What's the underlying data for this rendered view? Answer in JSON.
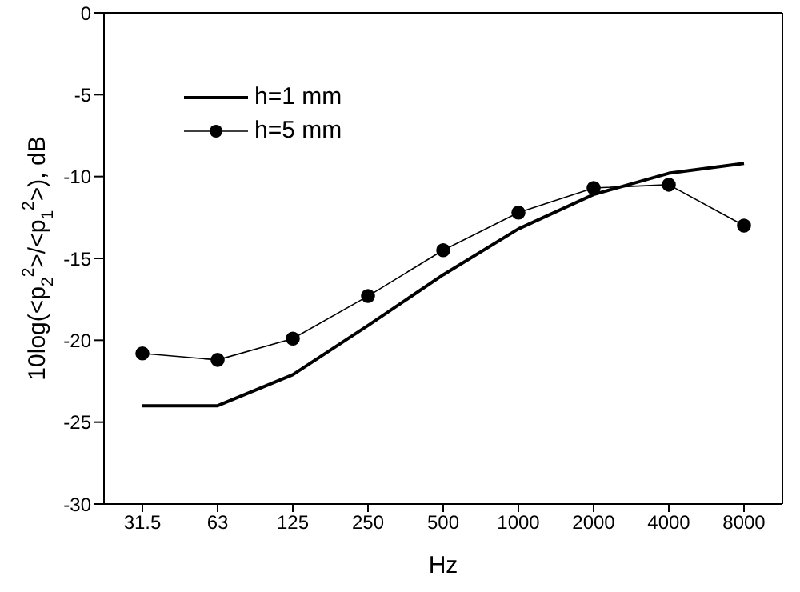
{
  "chart_data": {
    "type": "line",
    "xlabel": "Hz",
    "ylabel": "10log(<p$_{2}$$^{2}$>/<p$_{1}$$^{2}$>), dB",
    "categories": [
      "31.5",
      "63",
      "125",
      "250",
      "500",
      "1000",
      "2000",
      "4000",
      "8000"
    ],
    "series": [
      {
        "name": "h=1 mm",
        "color": "#000000",
        "marker": "none",
        "values": [
          -24.0,
          -24.0,
          -22.1,
          -19.1,
          -16.0,
          -13.2,
          -11.1,
          -9.8,
          -9.2
        ]
      },
      {
        "name": "h=5 mm",
        "color": "#000000",
        "marker": "circle",
        "values": [
          -20.8,
          -21.2,
          -19.9,
          -17.3,
          -14.5,
          -12.2,
          -10.7,
          -10.5,
          -13.0
        ]
      }
    ],
    "ylim": [
      -30,
      0
    ],
    "yticks": [
      -30,
      -25,
      -20,
      -15,
      -10,
      -5,
      0
    ],
    "grid": false,
    "legend": "top left"
  }
}
